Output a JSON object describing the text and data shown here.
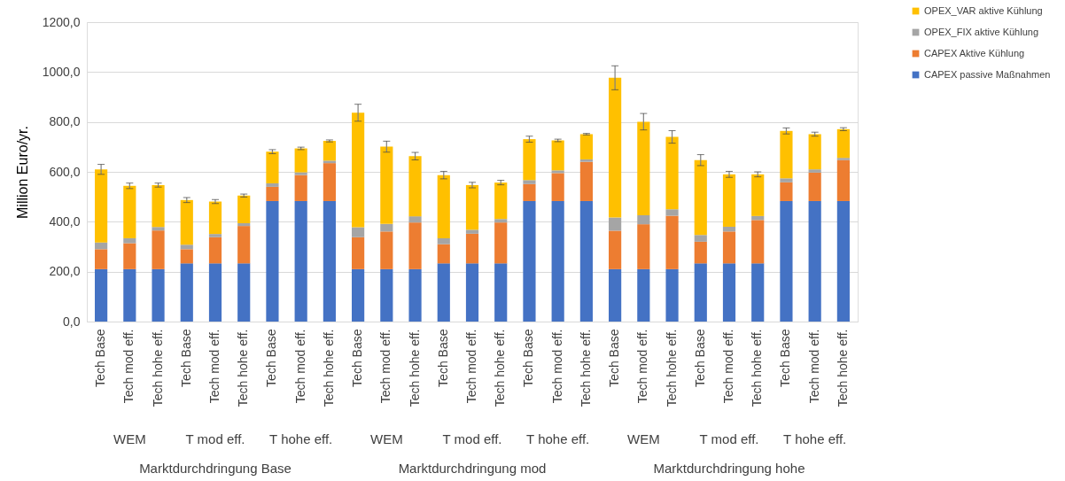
{
  "chart_data": {
    "type": "bar",
    "stacked": true,
    "ylabel": "Million Euro/yr.",
    "categories": [
      "Tech Base",
      "Tech mod eff.",
      "Tech hohe eff.",
      "Tech Base",
      "Tech mod eff.",
      "Tech hohe eff.",
      "Tech Base",
      "Tech mod eff.",
      "Tech hohe eff.",
      "Tech Base",
      "Tech mod eff.",
      "Tech hohe eff.",
      "Tech Base",
      "Tech mod eff.",
      "Tech hohe eff.",
      "Tech Base",
      "Tech mod eff.",
      "Tech hohe eff.",
      "Tech Base",
      "Tech mod eff.",
      "Tech hohe eff.",
      "Tech Base",
      "Tech mod eff.",
      "Tech hohe eff.",
      "Tech Base",
      "Tech mod eff.",
      "Tech hohe eff."
    ],
    "annotations": [
      "WEM",
      "T mod eff.",
      "T hohe eff.",
      "WEM",
      "T mod eff.",
      "T hohe eff.",
      "WEM",
      "T mod eff.",
      "T hohe eff.",
      "Marktdurchdringung Base",
      "Marktdurchdringung mod",
      "Marktdurchdringung hohe"
    ],
    "series": [
      {
        "name": "CAPEX passive Maßnahmen",
        "color": "#4472c4",
        "values": [
          210,
          210,
          210,
          233,
          233,
          233,
          483,
          483,
          483,
          210,
          210,
          210,
          233,
          233,
          233,
          483,
          483,
          483,
          210,
          210,
          210,
          233,
          233,
          233,
          483,
          483,
          483
        ]
      },
      {
        "name": "CAPEX Aktive Kühlung",
        "color": "#ed7d31",
        "values": [
          80,
          104,
          155,
          57,
          105,
          150,
          57,
          104,
          152,
          128,
          151,
          187,
          77,
          119,
          164,
          68,
          112,
          157,
          154,
          180,
          214,
          87,
          128,
          174,
          75,
          114,
          164
        ]
      },
      {
        "name": "OPEX_FIX aktive Kühlung",
        "color": "#a5a5a5",
        "values": [
          27,
          20,
          14,
          18,
          13,
          11,
          14,
          11,
          10,
          40,
          30,
          25,
          24,
          16,
          14,
          16,
          11,
          10,
          53,
          36,
          26,
          27,
          19,
          16,
          16,
          13,
          9
        ]
      },
      {
        "name": "OPEX_VAR aktive Kühlung",
        "color": "#ffc000",
        "values": [
          293,
          210,
          168,
          179,
          130,
          111,
          127,
          96,
          79,
          459,
          310,
          241,
          253,
          179,
          146,
          164,
          120,
          101,
          560,
          375,
          290,
          300,
          210,
          167,
          190,
          141,
          115
        ],
        "errors": [
          20,
          11,
          8,
          10,
          8,
          6,
          8,
          5,
          4,
          34,
          22,
          15,
          15,
          11,
          9,
          12,
          5,
          3,
          48,
          33,
          25,
          22,
          12,
          10,
          12,
          8,
          6
        ]
      }
    ],
    "ylim": [
      0,
      1200
    ],
    "yticks": [
      {
        "value": 0,
        "label": "0,0"
      },
      {
        "value": 200,
        "label": "200,0"
      },
      {
        "value": 400,
        "label": "400,0"
      },
      {
        "value": 600,
        "label": "600,0"
      },
      {
        "value": 800,
        "label": "800,0"
      },
      {
        "value": 1000,
        "label": "1000,0"
      },
      {
        "value": 1200,
        "label": "1200,0"
      }
    ],
    "grid": "y",
    "legend": "top right"
  }
}
